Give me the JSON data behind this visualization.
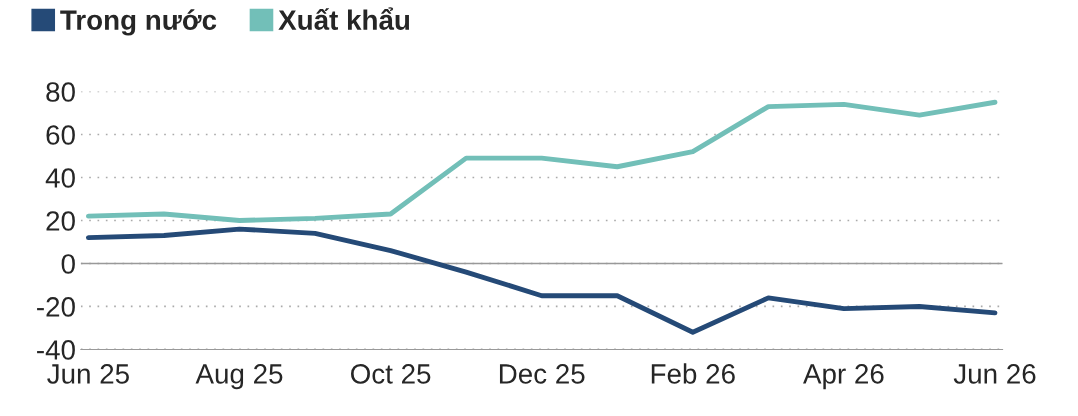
{
  "chart_data": {
    "type": "line",
    "categories": [
      "Jun 25",
      null,
      "Aug 25",
      null,
      "Oct 25",
      null,
      "Dec 25",
      null,
      "Feb 26",
      null,
      "Apr 26",
      null,
      "Jun 26"
    ],
    "series": [
      {
        "name": "Trong nước",
        "color": "#254a77",
        "values": [
          12,
          13,
          16,
          14,
          6,
          -4,
          -15,
          -15,
          -32,
          -16,
          -21,
          -20,
          -23
        ]
      },
      {
        "name": "Xuất khẩu",
        "color": "#72bfb8",
        "values": [
          22,
          23,
          20,
          21,
          23,
          49,
          49,
          45,
          52,
          73,
          74,
          69,
          75
        ]
      }
    ],
    "ylim": [
      -40,
      80
    ],
    "yticks": [
      -40,
      -20,
      0,
      20,
      40,
      60,
      80
    ],
    "grid": "y",
    "legend": "top left",
    "marker": "none",
    "line_style": "solid",
    "ref_lines": [
      {
        "axis": "y",
        "value": 0,
        "color": "#999999"
      }
    ]
  }
}
